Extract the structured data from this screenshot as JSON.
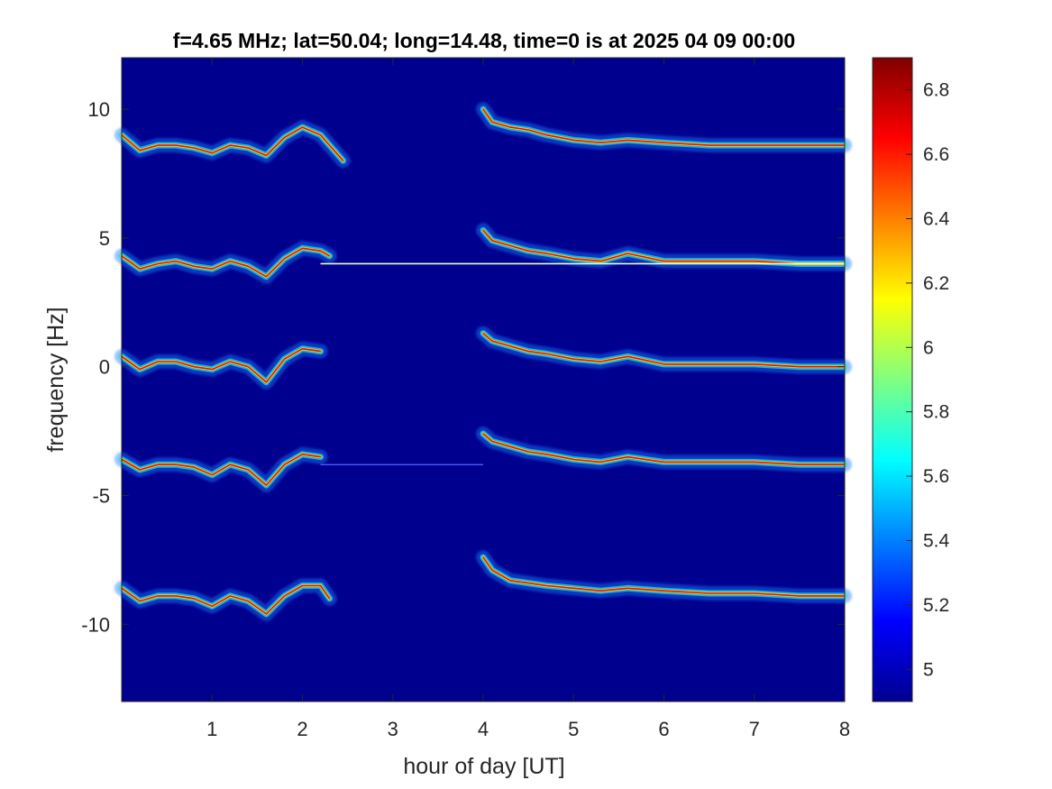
{
  "chart_data": {
    "type": "heatmap",
    "title": "f=4.65 MHz;  lat=50.04; long=14.48, time=0 is at 2025 04 09 00:00",
    "xlabel": "hour of day [UT]",
    "ylabel": "frequency [Hz]",
    "xlim": [
      0,
      8
    ],
    "ylim": [
      -13,
      12
    ],
    "x_ticks": [
      1,
      2,
      3,
      4,
      5,
      6,
      7,
      8
    ],
    "x_tick_labels": [
      "1",
      "2",
      "3",
      "4",
      "5",
      "6",
      "7",
      "8"
    ],
    "y_ticks": [
      10,
      5,
      0,
      -5,
      -10
    ],
    "y_tick_labels": [
      "10",
      "5",
      "0",
      "-5",
      "-10"
    ],
    "grid": false,
    "colormap": "jet",
    "background_color": "#00008f",
    "colorbar": {
      "clim": [
        4.9,
        6.9
      ],
      "ticks": [
        6.8,
        6.6,
        6.4,
        6.2,
        6,
        5.8,
        5.6,
        5.4,
        5.2,
        5
      ],
      "tick_labels": [
        "6.8",
        "6.6",
        "6.4",
        "6.2",
        "6",
        "5.8",
        "5.6",
        "5.4",
        "5.2",
        "5"
      ]
    },
    "traces": [
      {
        "name": "",
        "x": [
          0.0,
          0.2,
          0.4,
          0.6,
          0.8,
          1.0,
          1.2,
          1.4,
          1.6,
          1.8,
          2.0,
          2.2,
          2.3,
          2.45
        ],
        "y": [
          9.0,
          8.4,
          8.6,
          8.6,
          8.5,
          8.3,
          8.6,
          8.5,
          8.2,
          8.9,
          9.3,
          9.0,
          8.6,
          8.0
        ]
      },
      {
        "name": "",
        "x": [
          4.0,
          4.1,
          4.3,
          4.5,
          4.7,
          5.0,
          5.3,
          5.6,
          6.0,
          6.5,
          7.0,
          7.5,
          8.0
        ],
        "y": [
          10.0,
          9.5,
          9.3,
          9.2,
          9.0,
          8.8,
          8.7,
          8.8,
          8.7,
          8.6,
          8.6,
          8.6,
          8.6
        ]
      },
      {
        "name": "",
        "x": [
          0.0,
          0.2,
          0.4,
          0.6,
          0.8,
          1.0,
          1.2,
          1.4,
          1.6,
          1.8,
          2.0,
          2.2,
          2.3
        ],
        "y": [
          4.3,
          3.8,
          4.0,
          4.1,
          3.9,
          3.8,
          4.1,
          3.9,
          3.5,
          4.2,
          4.6,
          4.5,
          4.3
        ]
      },
      {
        "name": "",
        "x": [
          4.0,
          4.1,
          4.3,
          4.5,
          4.7,
          5.0,
          5.3,
          5.6,
          6.0,
          6.5,
          7.0,
          7.5,
          8.0
        ],
        "y": [
          5.3,
          4.9,
          4.7,
          4.5,
          4.4,
          4.2,
          4.1,
          4.4,
          4.1,
          4.1,
          4.1,
          4.0,
          4.0
        ]
      },
      {
        "name": "",
        "x": [
          0.0,
          0.2,
          0.4,
          0.6,
          0.8,
          1.0,
          1.2,
          1.4,
          1.6,
          1.8,
          2.0,
          2.2
        ],
        "y": [
          0.4,
          -0.1,
          0.2,
          0.2,
          0.0,
          -0.1,
          0.2,
          0.0,
          -0.6,
          0.3,
          0.7,
          0.6
        ]
      },
      {
        "name": "",
        "x": [
          4.0,
          4.1,
          4.3,
          4.5,
          4.7,
          5.0,
          5.3,
          5.6,
          6.0,
          6.5,
          7.0,
          7.5,
          8.0
        ],
        "y": [
          1.3,
          1.0,
          0.8,
          0.6,
          0.5,
          0.3,
          0.2,
          0.4,
          0.1,
          0.1,
          0.1,
          0.0,
          0.0
        ]
      },
      {
        "name": "",
        "x": [
          0.0,
          0.2,
          0.4,
          0.6,
          0.8,
          1.0,
          1.2,
          1.4,
          1.6,
          1.8,
          2.0,
          2.2
        ],
        "y": [
          -3.6,
          -4.0,
          -3.8,
          -3.8,
          -3.9,
          -4.2,
          -3.8,
          -4.0,
          -4.6,
          -3.8,
          -3.4,
          -3.5
        ]
      },
      {
        "name": "",
        "x": [
          4.0,
          4.1,
          4.3,
          4.5,
          4.7,
          5.0,
          5.3,
          5.6,
          6.0,
          6.5,
          7.0,
          7.5,
          8.0
        ],
        "y": [
          -2.6,
          -2.9,
          -3.1,
          -3.3,
          -3.4,
          -3.6,
          -3.7,
          -3.5,
          -3.7,
          -3.7,
          -3.7,
          -3.8,
          -3.8
        ]
      },
      {
        "name": "",
        "x": [
          0.0,
          0.2,
          0.4,
          0.6,
          0.8,
          1.0,
          1.2,
          1.4,
          1.6,
          1.8,
          2.0,
          2.2,
          2.3
        ],
        "y": [
          -8.6,
          -9.1,
          -8.9,
          -8.9,
          -9.0,
          -9.3,
          -8.9,
          -9.1,
          -9.6,
          -8.9,
          -8.5,
          -8.5,
          -9.0
        ]
      },
      {
        "name": "",
        "x": [
          4.0,
          4.1,
          4.3,
          4.5,
          4.7,
          5.0,
          5.3,
          5.6,
          6.0,
          6.5,
          7.0,
          7.5,
          8.0
        ],
        "y": [
          -7.4,
          -7.9,
          -8.3,
          -8.4,
          -8.5,
          -8.6,
          -8.7,
          -8.6,
          -8.7,
          -8.8,
          -8.8,
          -8.9,
          -8.9
        ]
      }
    ],
    "reference_lines": [
      {
        "y": 4.0,
        "x_range": [
          2.2,
          8.0
        ]
      },
      {
        "y": -3.8,
        "x_range": [
          2.2,
          4.0
        ]
      }
    ]
  }
}
